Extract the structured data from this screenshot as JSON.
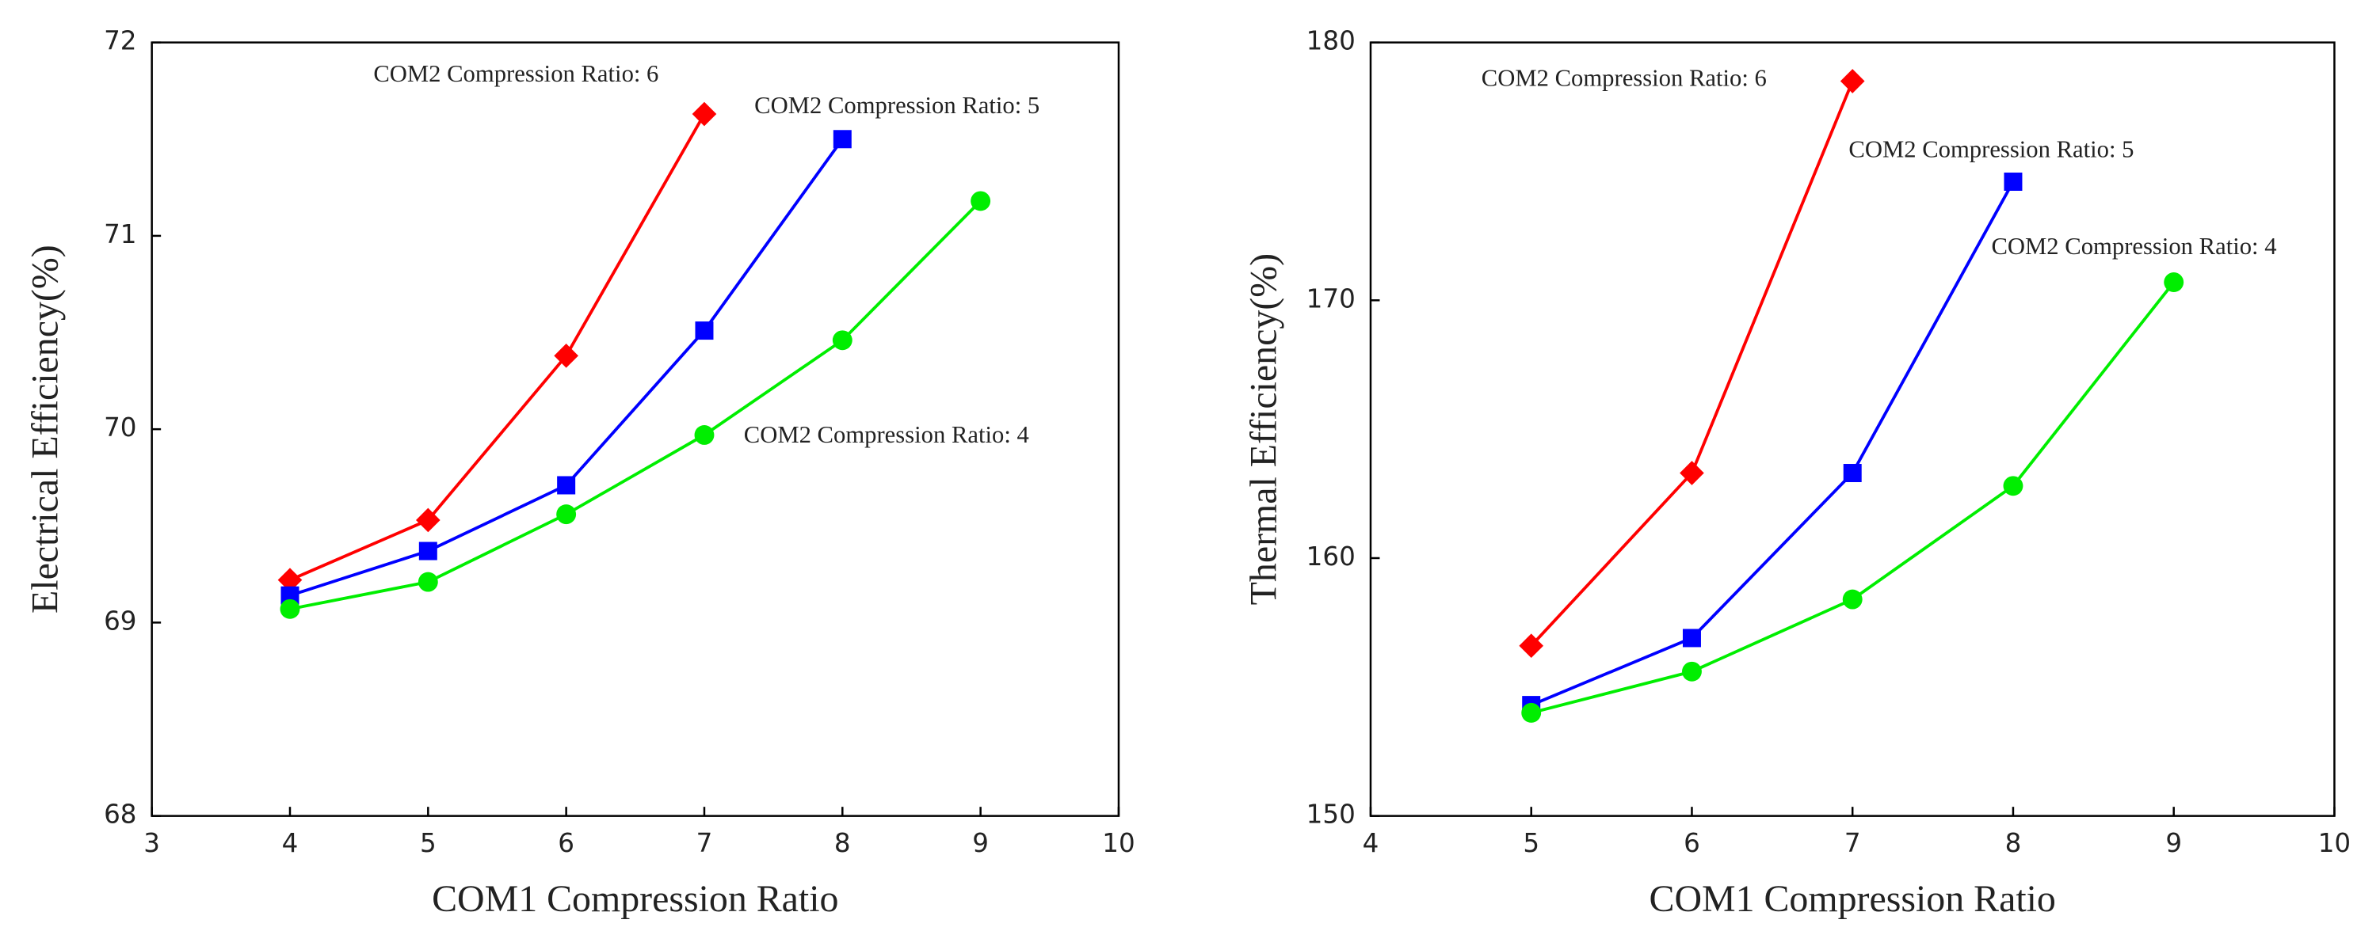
{
  "chart_data": [
    {
      "type": "line",
      "xlabel": "COM1 Compression Ratio",
      "ylabel": "Electrical Efficiency(%)",
      "xlim": [
        3,
        10
      ],
      "xticks": [
        3,
        4,
        5,
        6,
        7,
        8,
        9,
        10
      ],
      "ylim": [
        68,
        72
      ],
      "yticks": [
        68,
        69,
        70,
        71,
        72
      ],
      "annotations": [
        "COM2 Compression Ratio: 6",
        "COM2 Compression Ratio: 5",
        "COM2 Compression Ratio: 4"
      ],
      "series": [
        {
          "color": "#ff0000",
          "marker": "diamond",
          "x": [
            4,
            5,
            6,
            7
          ],
          "values": [
            69.22,
            69.53,
            70.38,
            71.63
          ]
        },
        {
          "color": "#0000ff",
          "marker": "square",
          "x": [
            4,
            5,
            6,
            7,
            8
          ],
          "values": [
            69.14,
            69.37,
            69.71,
            70.51,
            71.5
          ]
        },
        {
          "color": "#00ee00",
          "marker": "circle",
          "x": [
            4,
            5,
            6,
            7,
            8,
            9
          ],
          "values": [
            69.07,
            69.21,
            69.56,
            69.97,
            70.46,
            71.18
          ]
        }
      ]
    },
    {
      "type": "line",
      "xlabel": "COM1 Compression Ratio",
      "ylabel": "Thermal Efficiency(%)",
      "xlim": [
        4,
        10
      ],
      "xticks": [
        4,
        5,
        6,
        7,
        8,
        9,
        10
      ],
      "ylim": [
        150,
        180
      ],
      "yticks": [
        150,
        160,
        170,
        180
      ],
      "annotations": [
        "COM2 Compression Ratio: 6",
        "COM2 Compression Ratio: 5",
        "COM2 Compression Ratio: 4"
      ],
      "series": [
        {
          "color": "#ff0000",
          "marker": "diamond",
          "x": [
            5,
            6,
            7
          ],
          "values": [
            156.6,
            163.3,
            178.5
          ]
        },
        {
          "color": "#0000ff",
          "marker": "square",
          "x": [
            5,
            6,
            7,
            8
          ],
          "values": [
            154.3,
            156.9,
            163.3,
            174.6
          ]
        },
        {
          "color": "#00ee00",
          "marker": "circle",
          "x": [
            5,
            6,
            7,
            8,
            9
          ],
          "values": [
            154.0,
            155.6,
            158.4,
            162.8,
            170.7
          ]
        }
      ]
    }
  ]
}
